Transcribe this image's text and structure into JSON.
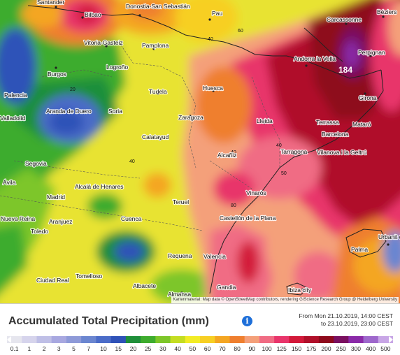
{
  "map": {
    "places": [
      "Santander",
      "Bilbao",
      "Donostia-San Sebastián",
      "Pau",
      "Carcassonne",
      "Béziers",
      "Vitoria-Gasteiz",
      "Pamplona",
      "Andorra la Vella",
      "Perpignan",
      "Burgos",
      "Logroño",
      "Huesca",
      "Palencia",
      "Tudela",
      "Girona",
      "Aranda de Duero",
      "Soria",
      "Zaragoza",
      "Lleida",
      "Valladolid",
      "Terrassa",
      "Mataró",
      "Barcelona",
      "Calatayud",
      "Tarragona",
      "Vilanova i la Geltrú",
      "Segovia",
      "Alcañiz",
      "Ávila",
      "Alcalá de Henares",
      "Madrid",
      "Teruel",
      "Vinaròs",
      "Aranjuez",
      "Castellón de la Plana",
      "Toledo",
      "Cuenca",
      "Nueva Reina",
      "Urbanit de Ca",
      "Palma",
      "Valencia",
      "Requena",
      "Tomelloso",
      "Ciudad Real",
      "Albacete",
      "Almansa",
      "Gandia",
      "Ibiza city"
    ],
    "contour_labels": [
      "40",
      "60",
      "40",
      "50",
      "20",
      "40",
      "40",
      "80"
    ],
    "max_value": "184",
    "attribution": "Kartenmaterial: Map data © OpenStreetMap contributors, rendering GIScience Research Group @ Heidelberg University"
  },
  "legend": {
    "title": "Accumulated Total Precipitation (mm)",
    "info_icon": "info-icon",
    "period_line1": "From Mon 21.10.2019, 14:00 CEST",
    "period_line2": "to 23.10.2019, 23:00 CEST",
    "scale_values": [
      "0.1",
      "1",
      "2",
      "3",
      "5",
      "7",
      "10",
      "15",
      "20",
      "25",
      "30",
      "40",
      "50",
      "60",
      "70",
      "80",
      "90",
      "100",
      "125",
      "150",
      "175",
      "200",
      "250",
      "300",
      "400",
      "500"
    ],
    "scale_colors": [
      "#e6e6ee",
      "#d6d4ec",
      "#bfbfe6",
      "#a8a8e0",
      "#8e9ad8",
      "#6b86d0",
      "#4b6cc8",
      "#2f52b8",
      "#1f8f3a",
      "#3eac2e",
      "#7dc629",
      "#c4dd22",
      "#f2ec26",
      "#f7cf24",
      "#f4a623",
      "#ef7f2f",
      "#f4a07a",
      "#f06c84",
      "#e8356b",
      "#d31a3a",
      "#b0102a",
      "#8e0a1c",
      "#7a1060",
      "#8a2aa8",
      "#9e68cc",
      "#c8a6e6"
    ]
  }
}
